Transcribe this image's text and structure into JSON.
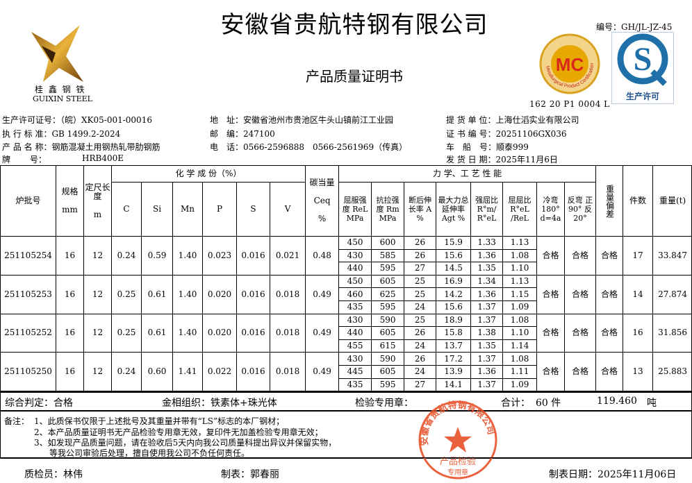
{
  "header": {
    "title": "安徽省贵航特钢有限公司",
    "subtitle": "产品质量证明书",
    "doc_no": "编号：GH/JL-JZ-45",
    "logo_text_cn": "桂 鑫 钢 铁",
    "logo_text_en": "GUIXIN STEEL",
    "mc_logo": {
      "text": "MC",
      "ring_text": "Metallurgical Product Certification",
      "top_text": "冶金产品认证",
      "code": "162 20 P1 0004 L"
    },
    "qs_logo": {
      "letter": "S",
      "text": "生产许可"
    }
  },
  "info": {
    "license": "生产许可证号：（皖）XK05-001-00016",
    "standard": "执 行 标 准：GB 1499.2-2024",
    "product": "产 品 名 称：钢筋混凝土用钢热轧带肋钢筋",
    "grade_label": "牌　　 号：",
    "grade": "HRB400E",
    "address": "地　址：安徽省池州市贵池区牛头山镇前江工业园",
    "postcode": "邮　编：247100",
    "phone": "电　话：0566-2596888　0566-2561969（传真）",
    "customer": "提 货 单 位：上海仕滔实业有限公司",
    "cert_no": "证 书 编 号：20251106GX036",
    "vehicle": "车　船　号：顺泰999",
    "ship_date": "发 货 日 期：2025年11月6日"
  },
  "table": {
    "headers": {
      "batch": "炉批号",
      "spec": "规格",
      "spec_unit": "mm",
      "length": "定尺长度",
      "length_unit": "m",
      "chem": "化 学 成 份（%）",
      "chem_cols": [
        "C",
        "Si",
        "Mn",
        "P",
        "S",
        "V"
      ],
      "ceq": "碳当量",
      "ceq_sym": "Ceq",
      "ceq_unit": "%",
      "mech": "力 学、工 艺 性 能",
      "mech_cols": [
        "屈服强度 ReL MPa",
        "抗拉强度 Rm MPa",
        "断后伸长率 A %",
        "最大力总延伸率 Agt %",
        "强屈比 R°m/ R°eL",
        "屈屈比 R°eL /ReL",
        "冷弯 180° d=4a",
        "反弯 正90° 反20°"
      ],
      "weight_dev": "重量偏差",
      "pieces": "件数",
      "weight": "重量(t)"
    },
    "rows": [
      {
        "batch": "251105254",
        "spec": "16",
        "length": "12",
        "C": "0.24",
        "Si": "0.59",
        "Mn": "1.40",
        "P": "0.023",
        "S": "0.016",
        "V": "0.021",
        "ceq": "0.48",
        "tests": [
          [
            "450",
            "600",
            "26",
            "15.9",
            "1.33",
            "1.13"
          ],
          [
            "430",
            "585",
            "26",
            "15.6",
            "1.36",
            "1.08"
          ],
          [
            "440",
            "595",
            "27",
            "14.5",
            "1.35",
            "1.10"
          ]
        ],
        "bend": "合格",
        "rebend": "合格",
        "weight_dev": "合格",
        "pieces": "17",
        "weight": "33.847"
      },
      {
        "batch": "251105253",
        "spec": "16",
        "length": "12",
        "C": "0.25",
        "Si": "0.61",
        "Mn": "1.40",
        "P": "0.020",
        "S": "0.016",
        "V": "0.018",
        "ceq": "0.49",
        "tests": [
          [
            "450",
            "605",
            "25",
            "16.9",
            "1.34",
            "1.13"
          ],
          [
            "460",
            "625",
            "25",
            "14.2",
            "1.36",
            "1.15"
          ],
          [
            "435",
            "595",
            "24",
            "15.6",
            "1.37",
            "1.09"
          ]
        ],
        "bend": "合格",
        "rebend": "合格",
        "weight_dev": "合格",
        "pieces": "14",
        "weight": "27.874"
      },
      {
        "batch": "251105252",
        "spec": "16",
        "length": "12",
        "C": "0.25",
        "Si": "0.61",
        "Mn": "1.40",
        "P": "0.020",
        "S": "0.016",
        "V": "0.018",
        "ceq": "0.49",
        "tests": [
          [
            "430",
            "590",
            "25",
            "18.9",
            "1.37",
            "1.08"
          ],
          [
            "440",
            "605",
            "26",
            "15.8",
            "1.38",
            "1.10"
          ],
          [
            "455",
            "615",
            "24",
            "13.7",
            "1.35",
            "1.14"
          ]
        ],
        "bend": "合格",
        "rebend": "合格",
        "weight_dev": "合格",
        "pieces": "16",
        "weight": "31.856"
      },
      {
        "batch": "251105250",
        "spec": "16",
        "length": "12",
        "C": "0.24",
        "Si": "0.60",
        "Mn": "1.41",
        "P": "0.022",
        "S": "0.016",
        "V": "0.018",
        "ceq": "0.49",
        "tests": [
          [
            "430",
            "590",
            "26",
            "17.2",
            "1.37",
            "1.08"
          ],
          [
            "445",
            "605",
            "24",
            "13.9",
            "1.36",
            "1.11"
          ],
          [
            "435",
            "595",
            "27",
            "14.1",
            "1.37",
            "1.09"
          ]
        ],
        "bend": "合格",
        "rebend": "合格",
        "weight_dev": "合格",
        "pieces": "13",
        "weight": "25.883"
      }
    ]
  },
  "summary": {
    "judgement": "综合判定：合格",
    "structure": "金相组织：铁素体+珠光体",
    "stamp_label": "检验专用章：",
    "total_label": "合计：",
    "total_pieces": "60 件",
    "total_weight": "119.460",
    "weight_unit": "吨"
  },
  "notes": {
    "label": "备注：",
    "items": [
      "1、此质保书仅限于上述批号及其重量并带有“LS”标志的本厂钢材；",
      "2、本产品质量证明书无产品检验专用章无效，复印件无加盖检验专用章无效；",
      "3、如发现产品质量问题，请在验收后5天内向我公司质量科提出异议并保留实物，",
      "等我公司审验后处理，擅自使用我公司不负任何责任。"
    ]
  },
  "stamp": {
    "ring_text": "安徽省贵航特钢有限公司",
    "line1": "产品检验",
    "line2": "专用章",
    "color": "#e8502a"
  },
  "footer": {
    "inspector": "质检员：林伟",
    "preparer": "制表：郭春丽",
    "date": "制表日期：2025年11月06日"
  }
}
